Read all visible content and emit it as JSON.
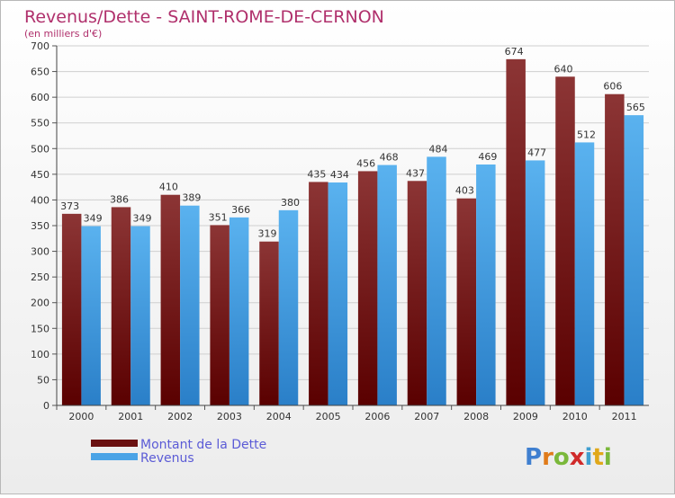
{
  "chart_data": {
    "type": "bar",
    "title": "Revenus/Dette - SAINT-ROME-DE-CERNON",
    "subtitle": "(en milliers d'€)",
    "categories": [
      "2000",
      "2001",
      "2002",
      "2003",
      "2004",
      "2005",
      "2006",
      "2007",
      "2008",
      "2009",
      "2010",
      "2011"
    ],
    "series": [
      {
        "name": "Montant de la Dette",
        "values": [
          373,
          386,
          410,
          351,
          319,
          435,
          456,
          437,
          403,
          674,
          640,
          606
        ],
        "color": "#7a1c1c"
      },
      {
        "name": "Revenus",
        "values": [
          349,
          349,
          389,
          366,
          380,
          434,
          468,
          484,
          469,
          477,
          512,
          565
        ],
        "color": "#4aa3e6"
      }
    ],
    "ylim": [
      0,
      700
    ],
    "yticks": [
      0,
      50,
      100,
      150,
      200,
      250,
      300,
      350,
      400,
      450,
      500,
      550,
      600,
      650,
      700
    ],
    "grid": true,
    "legend": "bottom-left"
  },
  "brand": {
    "text": "Proxiti"
  }
}
